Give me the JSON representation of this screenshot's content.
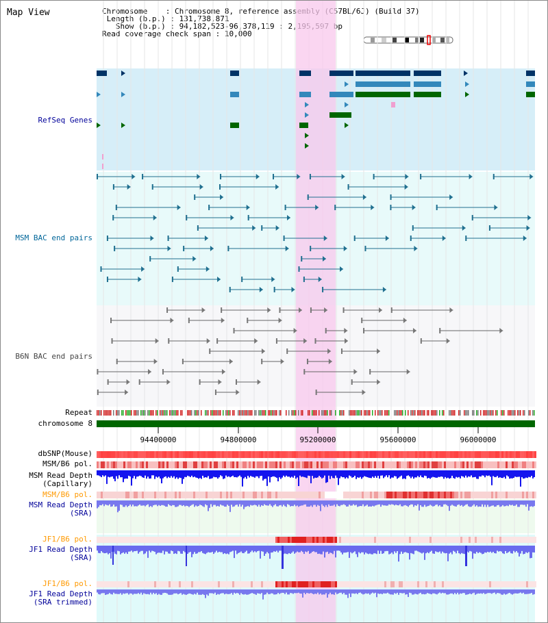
{
  "map_view": {
    "title": "Map View"
  },
  "info": {
    "chromosome_key": "Chromosome",
    "chromosome_value": "Chromosome 8, reference assembly (C57BL/6J) (Build 37)",
    "length_key": "Length (b.p.)",
    "length_value": "131,738,871",
    "show_key": "Show (b.p.)",
    "show_value": "94,182,523-96,378,119 : 2,195,597 bp",
    "read_cov_key": "Read coverage check span",
    "read_cov_value": "10,000"
  },
  "tracks": {
    "refseq": {
      "label": "RefSeq Genes",
      "color": "#000099",
      "bg": "#d6eef8"
    },
    "msm_bac": {
      "label": "MSM BAC end pairs",
      "color": "#006699",
      "bg": "#e8f8f8"
    },
    "b6n_bac": {
      "label": "B6N BAC end pairs",
      "color": "#444444",
      "bg": "#f6f6f8"
    },
    "repeat": {
      "label": "Repeat"
    },
    "chromosome": {
      "label": "chromosome 8",
      "color": "#006600"
    },
    "dbsnp": {
      "label": "dbSNP(Mouse)"
    },
    "msm_b6_pol_1": {
      "label": "MSM/B6 pol."
    },
    "msm_read_depth_cap": {
      "label1": "MSM Read Depth",
      "label2": "(Capillary)"
    },
    "msm_b6_pol_2": {
      "label": "MSM/B6 pol.",
      "color": "#ff9900"
    },
    "msm_read_depth_sra": {
      "label1": "MSM Read Depth",
      "label2": "(SRA)",
      "color": "#000099"
    },
    "jf1_b6_pol_1": {
      "label": "JF1/B6 pol.",
      "color": "#ff9900"
    },
    "jf1_read_depth": {
      "label1": "JF1 Read Depth",
      "label2": "(SRA)",
      "color": "#000099"
    },
    "jf1_b6_pol_2": {
      "label": "JF1/B6 pol.",
      "color": "#ff9900"
    },
    "jf1_read_depth_trim": {
      "label1": "JF1 Read Depth",
      "label2": "(SRA trimmed)",
      "color": "#000099"
    }
  },
  "axis": {
    "ticks": [
      "94400000",
      "94800000",
      "95200000",
      "95600000",
      "96000000"
    ]
  },
  "colors": {
    "highlight": "#f8c8ec",
    "gene_dark": "#003366",
    "gene_mid": "#3388bb",
    "gene_green": "#006600",
    "depth_blue": "#0000ee",
    "depth_sra": "#7777ee",
    "snp_red": "#ee3333"
  }
}
